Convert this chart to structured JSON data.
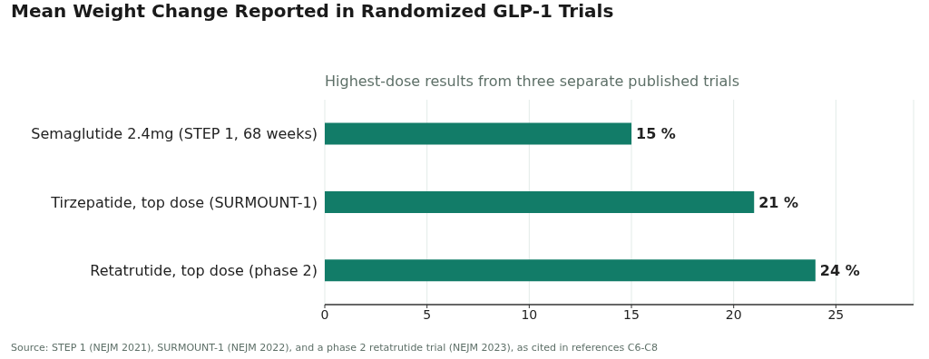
{
  "chart_data": {
    "type": "bar",
    "orientation": "horizontal",
    "title": "Mean Weight Change Reported in Randomized GLP-1 Trials",
    "subtitle": "Highest-dose results from three separate published trials",
    "categories": [
      "Semaglutide 2.4mg (STEP 1, 68 weeks)",
      "Tirzepatide, top dose (SURMOUNT-1)",
      "Retatrutide, top dose (phase 2)"
    ],
    "values": [
      15,
      21,
      24
    ],
    "value_labels": [
      "15 %",
      "21 %",
      "24 %"
    ],
    "color": "#127c68",
    "xlim": [
      0,
      28.8
    ],
    "xticks": [
      0,
      5,
      10,
      15,
      20,
      25
    ],
    "grid": "x",
    "legend": false,
    "annotations": [
      "Source: STEP 1 (NEJM 2021), SURMOUNT-1 (NEJM 2022), and a phase 2 retatrutide trial (NEJM 2023), as cited in references C6-C8"
    ]
  }
}
